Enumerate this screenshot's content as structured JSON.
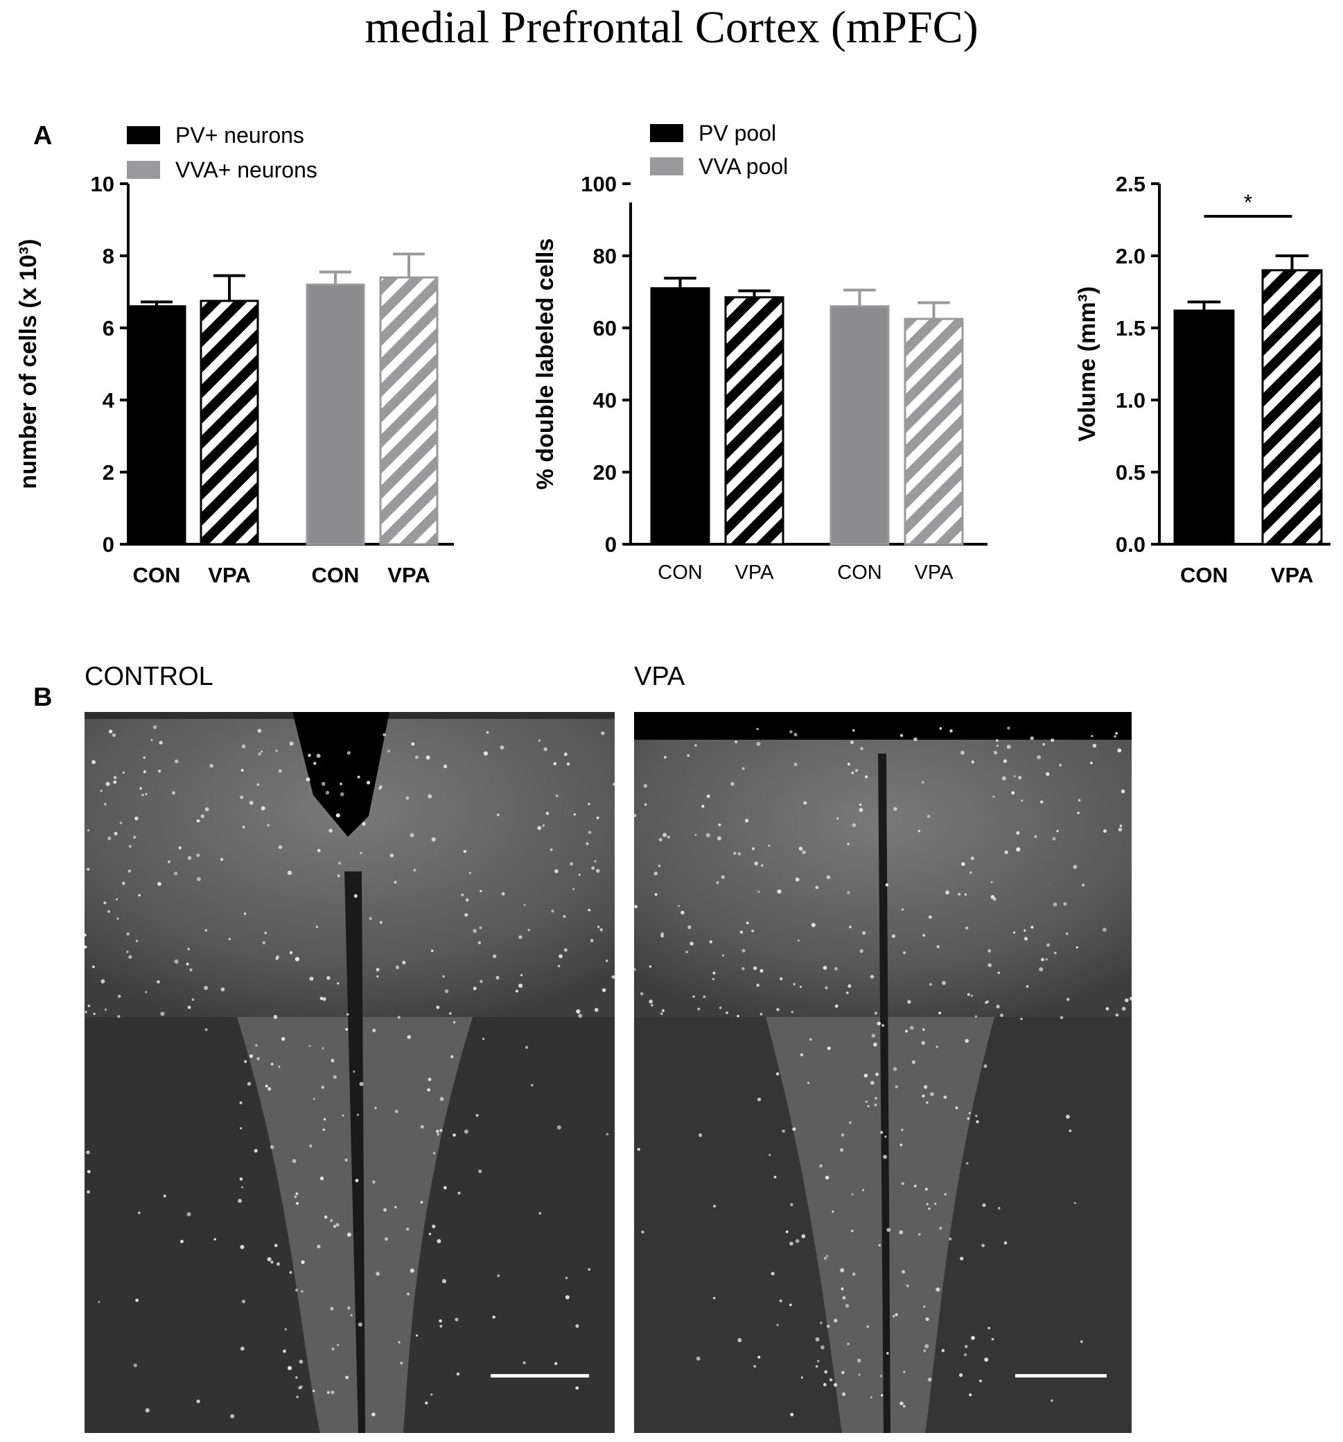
{
  "figure_title": "medial Prefrontal Cortex (mPFC)",
  "panel_a_label": "A",
  "panel_b_label": "B",
  "colors": {
    "black": "#000000",
    "gray": "#8c8c8e",
    "gray_hatch": "#9a9a9c"
  },
  "chart_data": [
    {
      "type": "bar",
      "ylabel": "number of cells (x 10³)",
      "ylim": [
        0,
        10
      ],
      "yticks": [
        "0",
        "2",
        "4",
        "6",
        "8",
        "10"
      ],
      "categories": [
        "CON",
        "VPA",
        "CON",
        "VPA"
      ],
      "values": [
        6.6,
        6.75,
        7.2,
        7.4
      ],
      "errors": [
        0.12,
        0.7,
        0.35,
        0.65
      ],
      "bar_styles": [
        "black-solid",
        "black-hatched",
        "gray-solid",
        "gray-hatched"
      ],
      "legend": [
        "PV+   neurons",
        "VVA+ neurons"
      ],
      "legend_colors": [
        "#000000",
        "#9a9a9c"
      ],
      "legend_position": "top-left"
    },
    {
      "type": "bar",
      "ylabel": "% double labeled cells",
      "ylim": [
        0,
        100
      ],
      "yticks": [
        "0",
        "20",
        "40",
        "60",
        "80",
        "100"
      ],
      "categories": [
        "CON",
        "VPA",
        "CON",
        "VPA"
      ],
      "values": [
        71,
        68.5,
        66,
        62.5
      ],
      "errors": [
        2.8,
        1.8,
        4.5,
        4.5
      ],
      "bar_styles": [
        "black-solid",
        "black-hatched",
        "gray-solid",
        "gray-hatched"
      ],
      "legend": [
        "PV pool",
        "VVA pool"
      ],
      "legend_colors": [
        "#000000",
        "#9a9a9c"
      ],
      "legend_position": "top-left"
    },
    {
      "type": "bar",
      "ylabel": "Volume (mm³)",
      "ylim": [
        0,
        2.5
      ],
      "yticks": [
        "0.0",
        "0.5",
        "1.0",
        "1.5",
        "2.0",
        "2.5"
      ],
      "categories": [
        "CON",
        "VPA"
      ],
      "values": [
        1.62,
        1.9
      ],
      "errors": [
        0.06,
        0.1
      ],
      "bar_styles": [
        "black-solid",
        "black-hatched"
      ],
      "significance": "*"
    }
  ],
  "images": [
    {
      "title": "CONTROL"
    },
    {
      "title": "VPA"
    }
  ]
}
